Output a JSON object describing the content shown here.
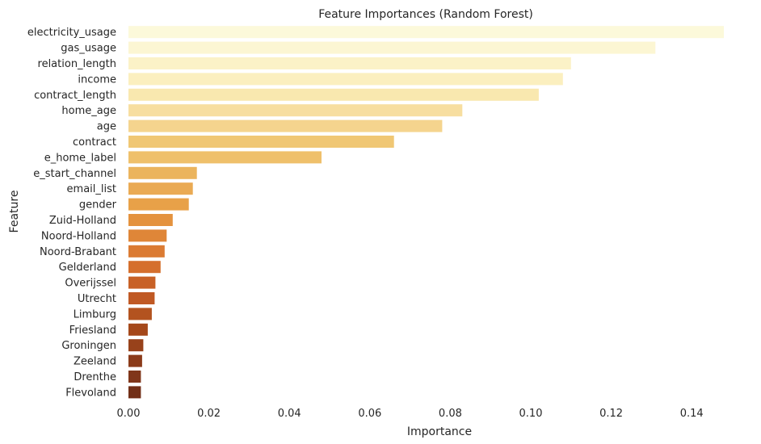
{
  "chart_data": {
    "type": "bar",
    "orientation": "horizontal",
    "title": "Feature Importances (Random Forest)",
    "xlabel": "Importance",
    "ylabel": "Feature",
    "xlim": [
      0,
      0.148
    ],
    "xticks": [
      "0.00",
      "0.02",
      "0.04",
      "0.06",
      "0.08",
      "0.10",
      "0.12",
      "0.14"
    ],
    "grid": false,
    "colormap": "YlOrBr",
    "categories": [
      "electricity_usage",
      "gas_usage",
      "relation_length",
      "income",
      "contract_length",
      "home_age",
      "age",
      "contract",
      "e_home_label",
      "e_start_channel",
      "email_list",
      "gender",
      "Zuid-Holland",
      "Noord-Holland",
      "Noord-Brabant",
      "Gelderland",
      "Overijssel",
      "Utrecht",
      "Limburg",
      "Friesland",
      "Groningen",
      "Zeeland",
      "Drenthe",
      "Flevoland"
    ],
    "values": [
      0.148,
      0.131,
      0.11,
      0.108,
      0.102,
      0.083,
      0.078,
      0.066,
      0.048,
      0.017,
      0.016,
      0.015,
      0.011,
      0.0095,
      0.009,
      0.008,
      0.0067,
      0.0065,
      0.0058,
      0.0048,
      0.0037,
      0.0034,
      0.0031,
      0.0031
    ],
    "colors": [
      "#fcf9da",
      "#fcf6d3",
      "#fbf2c7",
      "#fbefbf",
      "#f9e8af",
      "#f7dea0",
      "#f5d48e",
      "#f0c774",
      "#efc06b",
      "#ebb45d",
      "#eaaa53",
      "#e8a148",
      "#e4923e",
      "#df8638",
      "#db7b33",
      "#d56f2d",
      "#c86126",
      "#c05924",
      "#b3531f",
      "#a5481a",
      "#98421b",
      "#8b3b1a",
      "#80361a",
      "#722f17"
    ]
  }
}
